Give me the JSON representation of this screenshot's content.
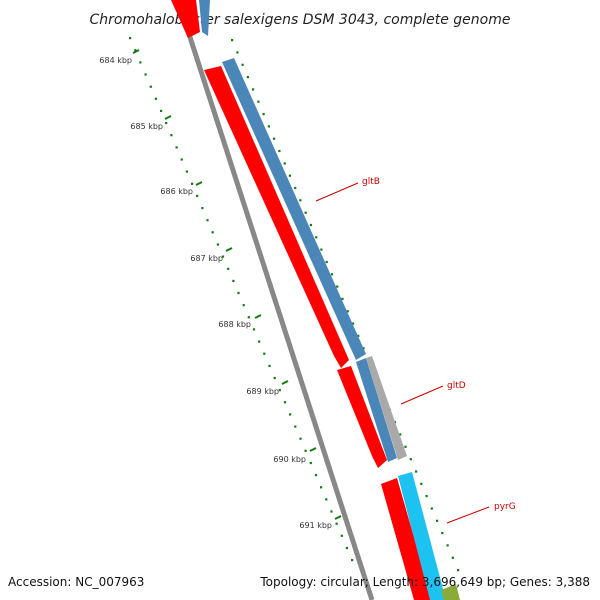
{
  "title": "Chromohalobacter salexigens DSM 3043, complete genome",
  "footer": {
    "accession": "Accession: NC_007963",
    "summary": "Topology: circular; Length: 3,696,649 bp; Genes: 3,388"
  },
  "ticks": [
    {
      "label": "684 kbp"
    },
    {
      "label": "685 kbp"
    },
    {
      "label": "686 kbp"
    },
    {
      "label": "687 kbp"
    },
    {
      "label": "688 kbp"
    },
    {
      "label": "689 kbp"
    },
    {
      "label": "690 kbp"
    },
    {
      "label": "691 kbp"
    }
  ],
  "genes": [
    {
      "label": "gltB"
    },
    {
      "label": "gltD"
    },
    {
      "label": "pyrG"
    }
  ],
  "colors": {
    "forward_cds": "#ff0000",
    "track_blue": "#4a86b8",
    "track_gray": "#a9a9a9",
    "track_cyan": "#1ec2f0",
    "track_olive": "#8aab3a",
    "backbone": "#777777",
    "tick_green": "#117a11",
    "label_red": "#cc0000"
  }
}
